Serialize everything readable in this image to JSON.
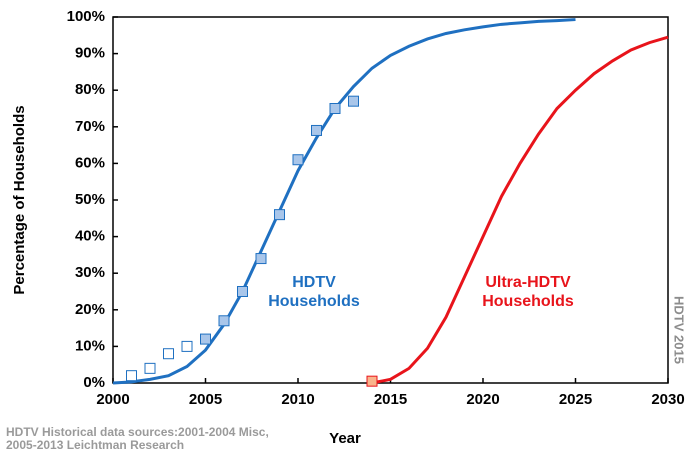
{
  "chart_data": {
    "type": "line",
    "xlabel": "Year",
    "ylabel": "Percentage of Households",
    "xlim": [
      2000,
      2030
    ],
    "xticks": [
      2000,
      2005,
      2010,
      2015,
      2020,
      2025,
      2030
    ],
    "ylim": [
      0,
      100
    ],
    "yticks": [
      {
        "value": 0,
        "label": "0%"
      },
      {
        "value": 10,
        "label": "10%"
      },
      {
        "value": 20,
        "label": "20%"
      },
      {
        "value": 30,
        "label": "30%"
      },
      {
        "value": 40,
        "label": "40%"
      },
      {
        "value": 50,
        "label": "50%"
      },
      {
        "value": 60,
        "label": "60%"
      },
      {
        "value": 70,
        "label": "70%"
      },
      {
        "value": 80,
        "label": "80%"
      },
      {
        "value": 90,
        "label": "90%"
      },
      {
        "value": 100,
        "label": "100%"
      }
    ],
    "grid": false,
    "series": [
      {
        "mode": "line",
        "color": "#1f70c1",
        "x": [
          2000,
          2001,
          2002,
          2003,
          2004,
          2005,
          2006,
          2007,
          2008,
          2009,
          2010,
          2011,
          2012,
          2013,
          2014,
          2015,
          2016,
          2017,
          2018,
          2019,
          2020,
          2021,
          2022,
          2023,
          2024,
          2025
        ],
        "values": [
          0,
          0.3,
          1,
          2,
          4.5,
          9,
          16,
          25,
          36,
          47,
          58,
          67,
          75,
          81,
          86,
          89.5,
          92,
          94,
          95.5,
          96.5,
          97.3,
          98,
          98.4,
          98.8,
          99,
          99.3
        ]
      },
      {
        "mode": "line",
        "color": "#e8141b",
        "x": [
          2014,
          2015,
          2016,
          2017,
          2018,
          2019,
          2020,
          2021,
          2022,
          2023,
          2024,
          2025,
          2026,
          2027,
          2028,
          2029,
          2030
        ],
        "values": [
          0,
          1,
          4,
          9.5,
          18,
          29,
          40,
          51,
          60,
          68,
          75,
          80,
          84.5,
          88,
          91,
          93,
          94.5
        ]
      },
      {
        "mode": "markers",
        "color": "#1f70c1",
        "fill": "#ffffff",
        "x": [
          2001,
          2002,
          2003,
          2004
        ],
        "values": [
          2,
          4,
          8,
          10
        ]
      },
      {
        "mode": "markers",
        "color": "#1f70c1",
        "fill": "#a9c6ea",
        "x": [
          2005,
          2006,
          2007,
          2008,
          2009,
          2010,
          2011,
          2012,
          2013
        ],
        "values": [
          12,
          17,
          25,
          34,
          46,
          61,
          69,
          75,
          77
        ]
      },
      {
        "mode": "markers",
        "color": "#e8141b",
        "fill": "#f9b48c",
        "x": [
          2014
        ],
        "values": [
          0.5
        ]
      }
    ],
    "annotations": [
      "HDTV",
      "Households",
      "Ultra-HDTV",
      "Households",
      "HDTV 2015"
    ],
    "source": [
      "HDTV Historical data sources:2001-2004 Misc,",
      "2005-2013 Leichtman Research"
    ]
  }
}
